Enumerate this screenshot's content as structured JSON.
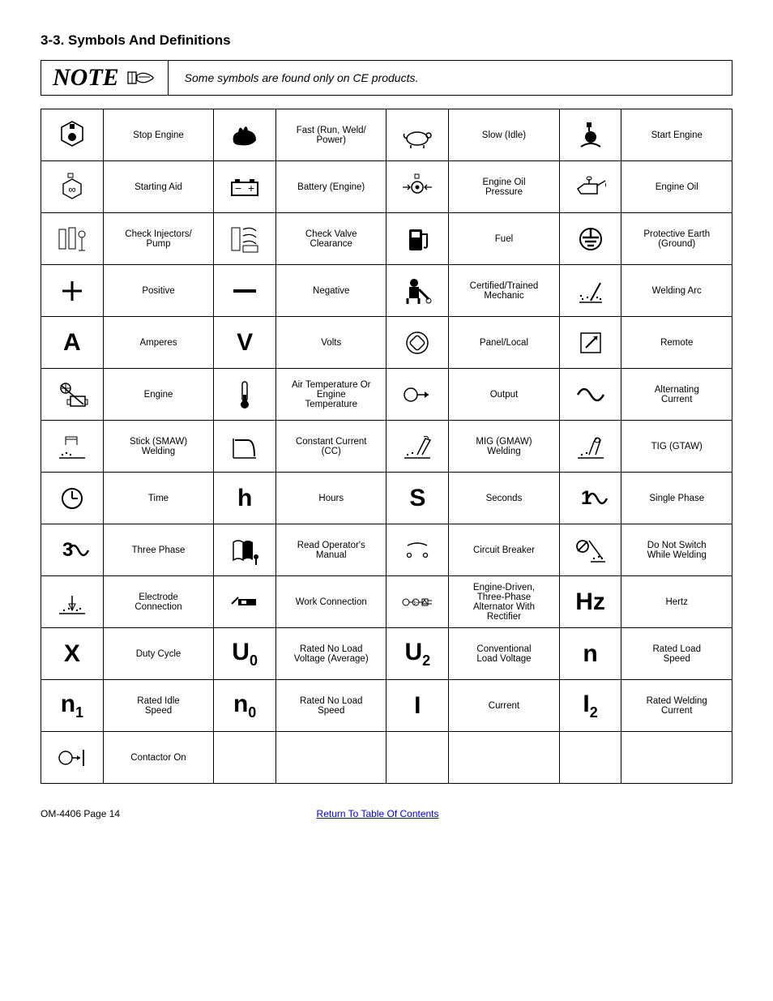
{
  "heading": "3-3.   Symbols And Definitions",
  "note": {
    "label": "NOTE",
    "text": "Some symbols are found only on CE products."
  },
  "footer": {
    "page": "OM-4406 Page 14",
    "toc": "Return To Table Of Contents"
  },
  "colors": {
    "text": "#000000",
    "border": "#000000",
    "link": "#0000cc",
    "background": "#ffffff"
  },
  "layout": {
    "rows": 13,
    "cols": 8
  },
  "cells": [
    {
      "r": 0,
      "c": 0,
      "t": "icon",
      "k": "stop-engine"
    },
    {
      "r": 0,
      "c": 1,
      "t": "label",
      "v": "Stop Engine"
    },
    {
      "r": 0,
      "c": 2,
      "t": "icon",
      "k": "rabbit"
    },
    {
      "r": 0,
      "c": 3,
      "t": "label",
      "v": "Fast (Run, Weld/\nPower)"
    },
    {
      "r": 0,
      "c": 4,
      "t": "icon",
      "k": "turtle"
    },
    {
      "r": 0,
      "c": 5,
      "t": "label",
      "v": "Slow (Idle)"
    },
    {
      "r": 0,
      "c": 6,
      "t": "icon",
      "k": "start-engine"
    },
    {
      "r": 0,
      "c": 7,
      "t": "label",
      "v": "Start Engine"
    },
    {
      "r": 1,
      "c": 0,
      "t": "icon",
      "k": "starting-aid"
    },
    {
      "r": 1,
      "c": 1,
      "t": "label",
      "v": "Starting Aid"
    },
    {
      "r": 1,
      "c": 2,
      "t": "icon",
      "k": "battery"
    },
    {
      "r": 1,
      "c": 3,
      "t": "label",
      "v": "Battery (Engine)"
    },
    {
      "r": 1,
      "c": 4,
      "t": "icon",
      "k": "oil-pressure"
    },
    {
      "r": 1,
      "c": 5,
      "t": "label",
      "v": "Engine Oil\nPressure"
    },
    {
      "r": 1,
      "c": 6,
      "t": "icon",
      "k": "oil-can"
    },
    {
      "r": 1,
      "c": 7,
      "t": "label",
      "v": "Engine Oil"
    },
    {
      "r": 2,
      "c": 0,
      "t": "icon",
      "k": "injectors"
    },
    {
      "r": 2,
      "c": 1,
      "t": "label",
      "v": "Check Injectors/\nPump"
    },
    {
      "r": 2,
      "c": 2,
      "t": "icon",
      "k": "valve"
    },
    {
      "r": 2,
      "c": 3,
      "t": "label",
      "v": "Check Valve\nClearance"
    },
    {
      "r": 2,
      "c": 4,
      "t": "icon",
      "k": "fuel"
    },
    {
      "r": 2,
      "c": 5,
      "t": "label",
      "v": "Fuel"
    },
    {
      "r": 2,
      "c": 6,
      "t": "icon",
      "k": "ground"
    },
    {
      "r": 2,
      "c": 7,
      "t": "label",
      "v": "Protective Earth\n(Ground)"
    },
    {
      "r": 3,
      "c": 0,
      "t": "icon",
      "k": "plus"
    },
    {
      "r": 3,
      "c": 1,
      "t": "label",
      "v": "Positive"
    },
    {
      "r": 3,
      "c": 2,
      "t": "icon",
      "k": "minus"
    },
    {
      "r": 3,
      "c": 3,
      "t": "label",
      "v": "Negative"
    },
    {
      "r": 3,
      "c": 4,
      "t": "icon",
      "k": "mechanic"
    },
    {
      "r": 3,
      "c": 5,
      "t": "label",
      "v": "Certified/Trained\nMechanic"
    },
    {
      "r": 3,
      "c": 6,
      "t": "icon",
      "k": "arc"
    },
    {
      "r": 3,
      "c": 7,
      "t": "label",
      "v": "Welding Arc"
    },
    {
      "r": 4,
      "c": 0,
      "t": "glyph",
      "g": "A"
    },
    {
      "r": 4,
      "c": 1,
      "t": "label",
      "v": "Amperes"
    },
    {
      "r": 4,
      "c": 2,
      "t": "glyph",
      "g": "V"
    },
    {
      "r": 4,
      "c": 3,
      "t": "label",
      "v": "Volts"
    },
    {
      "r": 4,
      "c": 4,
      "t": "icon",
      "k": "panel"
    },
    {
      "r": 4,
      "c": 5,
      "t": "label",
      "v": "Panel/Local"
    },
    {
      "r": 4,
      "c": 6,
      "t": "icon",
      "k": "remote"
    },
    {
      "r": 4,
      "c": 7,
      "t": "label",
      "v": "Remote"
    },
    {
      "r": 5,
      "c": 0,
      "t": "icon",
      "k": "engine"
    },
    {
      "r": 5,
      "c": 1,
      "t": "label",
      "v": "Engine"
    },
    {
      "r": 5,
      "c": 2,
      "t": "icon",
      "k": "thermometer"
    },
    {
      "r": 5,
      "c": 3,
      "t": "label",
      "v": "Air Temperature Or\nEngine\nTemperature"
    },
    {
      "r": 5,
      "c": 4,
      "t": "icon",
      "k": "output"
    },
    {
      "r": 5,
      "c": 5,
      "t": "label",
      "v": "Output"
    },
    {
      "r": 5,
      "c": 6,
      "t": "icon",
      "k": "ac"
    },
    {
      "r": 5,
      "c": 7,
      "t": "label",
      "v": "Alternating\nCurrent"
    },
    {
      "r": 6,
      "c": 0,
      "t": "icon",
      "k": "smaw"
    },
    {
      "r": 6,
      "c": 1,
      "t": "label",
      "v": "Stick (SMAW)\nWelding"
    },
    {
      "r": 6,
      "c": 2,
      "t": "icon",
      "k": "cc"
    },
    {
      "r": 6,
      "c": 3,
      "t": "label",
      "v": "Constant Current\n(CC)"
    },
    {
      "r": 6,
      "c": 4,
      "t": "icon",
      "k": "gmaw"
    },
    {
      "r": 6,
      "c": 5,
      "t": "label",
      "v": "MIG (GMAW)\nWelding"
    },
    {
      "r": 6,
      "c": 6,
      "t": "icon",
      "k": "gtaw"
    },
    {
      "r": 6,
      "c": 7,
      "t": "label",
      "v": "TIG (GTAW)"
    },
    {
      "r": 7,
      "c": 0,
      "t": "icon",
      "k": "clock"
    },
    {
      "r": 7,
      "c": 1,
      "t": "label",
      "v": "Time"
    },
    {
      "r": 7,
      "c": 2,
      "t": "glyph",
      "g": "h"
    },
    {
      "r": 7,
      "c": 3,
      "t": "label",
      "v": "Hours"
    },
    {
      "r": 7,
      "c": 4,
      "t": "glyph",
      "g": "S"
    },
    {
      "r": 7,
      "c": 5,
      "t": "label",
      "v": "Seconds"
    },
    {
      "r": 7,
      "c": 6,
      "t": "icon",
      "k": "single-phase"
    },
    {
      "r": 7,
      "c": 7,
      "t": "label",
      "v": "Single Phase"
    },
    {
      "r": 8,
      "c": 0,
      "t": "icon",
      "k": "three-phase"
    },
    {
      "r": 8,
      "c": 1,
      "t": "label",
      "v": "Three Phase"
    },
    {
      "r": 8,
      "c": 2,
      "t": "icon",
      "k": "manual"
    },
    {
      "r": 8,
      "c": 3,
      "t": "label",
      "v": "Read Operator's\nManual"
    },
    {
      "r": 8,
      "c": 4,
      "t": "icon",
      "k": "breaker"
    },
    {
      "r": 8,
      "c": 5,
      "t": "label",
      "v": "Circuit Breaker"
    },
    {
      "r": 8,
      "c": 6,
      "t": "icon",
      "k": "no-switch"
    },
    {
      "r": 8,
      "c": 7,
      "t": "label",
      "v": "Do Not Switch\nWhile Welding"
    },
    {
      "r": 9,
      "c": 0,
      "t": "icon",
      "k": "electrode"
    },
    {
      "r": 9,
      "c": 1,
      "t": "label",
      "v": "Electrode\nConnection"
    },
    {
      "r": 9,
      "c": 2,
      "t": "icon",
      "k": "work-conn"
    },
    {
      "r": 9,
      "c": 3,
      "t": "label",
      "v": "Work Connection"
    },
    {
      "r": 9,
      "c": 4,
      "t": "icon",
      "k": "alternator"
    },
    {
      "r": 9,
      "c": 5,
      "t": "label",
      "v": "Engine-Driven,\nThree-Phase\nAlternator With\nRectifier"
    },
    {
      "r": 9,
      "c": 6,
      "t": "glyph",
      "g": "Hz"
    },
    {
      "r": 9,
      "c": 7,
      "t": "label",
      "v": "Hertz"
    },
    {
      "r": 10,
      "c": 0,
      "t": "glyph",
      "g": "X"
    },
    {
      "r": 10,
      "c": 1,
      "t": "label",
      "v": "Duty Cycle"
    },
    {
      "r": 10,
      "c": 2,
      "t": "glyphsub",
      "g": "U",
      "s": "0"
    },
    {
      "r": 10,
      "c": 3,
      "t": "label",
      "v": "Rated No Load\nVoltage (Average)"
    },
    {
      "r": 10,
      "c": 4,
      "t": "glyphsub",
      "g": "U",
      "s": "2"
    },
    {
      "r": 10,
      "c": 5,
      "t": "label",
      "v": "Conventional\nLoad Voltage"
    },
    {
      "r": 10,
      "c": 6,
      "t": "glyph",
      "g": "n"
    },
    {
      "r": 10,
      "c": 7,
      "t": "label",
      "v": "Rated Load\nSpeed"
    },
    {
      "r": 11,
      "c": 0,
      "t": "glyphsub",
      "g": "n",
      "s": "1"
    },
    {
      "r": 11,
      "c": 1,
      "t": "label",
      "v": "Rated Idle\nSpeed"
    },
    {
      "r": 11,
      "c": 2,
      "t": "glyphsub",
      "g": "n",
      "s": "0"
    },
    {
      "r": 11,
      "c": 3,
      "t": "label",
      "v": "Rated No Load\nSpeed"
    },
    {
      "r": 11,
      "c": 4,
      "t": "glyph",
      "g": "I"
    },
    {
      "r": 11,
      "c": 5,
      "t": "label",
      "v": "Current"
    },
    {
      "r": 11,
      "c": 6,
      "t": "glyphsub",
      "g": "I",
      "s": "2"
    },
    {
      "r": 11,
      "c": 7,
      "t": "label",
      "v": "Rated Welding\nCurrent"
    },
    {
      "r": 12,
      "c": 0,
      "t": "icon",
      "k": "contactor"
    },
    {
      "r": 12,
      "c": 1,
      "t": "label",
      "v": "Contactor On"
    },
    {
      "r": 12,
      "c": 2,
      "t": "empty"
    },
    {
      "r": 12,
      "c": 3,
      "t": "empty"
    },
    {
      "r": 12,
      "c": 4,
      "t": "empty"
    },
    {
      "r": 12,
      "c": 5,
      "t": "empty"
    },
    {
      "r": 12,
      "c": 6,
      "t": "empty"
    },
    {
      "r": 12,
      "c": 7,
      "t": "empty"
    }
  ]
}
